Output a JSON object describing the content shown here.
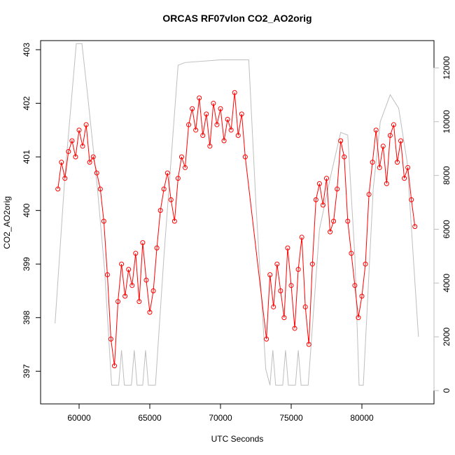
{
  "chart_data": {
    "type": "line",
    "title": "ORCAS RF07vlon CO2_AO2orig",
    "x_label": "UTC Seconds",
    "y_label": "CO2_AO2orig",
    "xlim": [
      57277,
      85099
    ],
    "xticks": [
      60000,
      65000,
      70000,
      75000,
      80000
    ],
    "ylim": [
      396.39,
      403.17
    ],
    "yticks": [
      397,
      398,
      399,
      400,
      401,
      402,
      403
    ],
    "y2lim": [
      -495,
      13015
    ],
    "y2ticks": [
      0,
      2000,
      4000,
      6000,
      8000,
      10000,
      12000
    ],
    "y2_color": "#bebebe",
    "series": [
      {
        "color": "#ff0000",
        "marker": "circle",
        "x": [
          58500,
          58750,
          59000,
          59250,
          59500,
          59750,
          60000,
          60250,
          60500,
          60750,
          61000,
          61250,
          61500,
          61750,
          62000,
          62250,
          62500,
          62750,
          63000,
          63250,
          63500,
          63750,
          64000,
          64250,
          64500,
          64750,
          65000,
          65250,
          65500,
          65750,
          66000,
          66250,
          66500,
          66750,
          67000,
          67250,
          67500,
          67750,
          68000,
          68250,
          68500,
          68750,
          69000,
          69250,
          69500,
          69750,
          70000,
          70250,
          70500,
          70750,
          71000,
          71250,
          71500,
          71750,
          73250,
          73500,
          73750,
          74000,
          74250,
          74500,
          74750,
          75000,
          75250,
          75500,
          75750,
          76000,
          76250,
          76500,
          76750,
          77000,
          77250,
          77500,
          77750,
          78000,
          78250,
          78500,
          78750,
          79000,
          79250,
          79500,
          79750,
          80000,
          80250,
          80500,
          80750,
          81000,
          81250,
          81500,
          81750,
          82000,
          82250,
          82500,
          82750,
          83000,
          83250,
          83500,
          83750
        ],
        "values": [
          400.4,
          400.9,
          400.6,
          401.1,
          401.3,
          401.0,
          401.5,
          401.2,
          401.6,
          400.9,
          401.0,
          400.7,
          400.4,
          399.8,
          398.8,
          397.6,
          397.1,
          398.3,
          399.0,
          398.4,
          398.9,
          398.6,
          399.2,
          398.3,
          399.4,
          398.7,
          398.1,
          398.5,
          399.3,
          400.0,
          400.4,
          400.7,
          400.2,
          399.8,
          400.6,
          401.0,
          400.8,
          401.6,
          401.9,
          401.5,
          402.1,
          401.4,
          401.8,
          401.2,
          402.0,
          401.6,
          401.9,
          401.3,
          401.7,
          401.5,
          402.2,
          401.4,
          401.8,
          401.0,
          397.6,
          398.8,
          398.2,
          399.0,
          398.5,
          398.0,
          399.3,
          398.6,
          397.8,
          398.9,
          399.5,
          398.2,
          397.5,
          399.0,
          400.2,
          400.5,
          400.1,
          400.6,
          399.6,
          399.8,
          400.4,
          401.3,
          401.0,
          399.8,
          399.2,
          398.6,
          398.0,
          398.4,
          399.0,
          400.3,
          400.9,
          401.5,
          400.8,
          401.2,
          400.5,
          401.4,
          401.6,
          400.9,
          401.3,
          400.6,
          400.8,
          400.2,
          399.7
        ]
      },
      {
        "color": "#bebebe",
        "axis": "y2",
        "x": [
          58300,
          59000,
          59800,
          60200,
          60600,
          61300,
          61800,
          62300,
          62800,
          63000,
          63200,
          63700,
          63900,
          64100,
          64500,
          64700,
          64900,
          65400,
          66000,
          67000,
          67500,
          70000,
          72000,
          72500,
          73200,
          73500,
          73700,
          73900,
          74400,
          74600,
          74800,
          75300,
          75500,
          75700,
          76200,
          77000,
          77800,
          78500,
          79000,
          79500,
          79800,
          80100,
          80800,
          81300,
          82000,
          82600,
          83200,
          84000
        ],
        "values": [
          2500,
          8000,
          12900,
          12900,
          11000,
          7500,
          4500,
          200,
          200,
          1500,
          200,
          200,
          1500,
          200,
          200,
          1500,
          200,
          200,
          5000,
          12100,
          12200,
          12300,
          12300,
          7000,
          800,
          200,
          1500,
          200,
          200,
          1500,
          200,
          200,
          1500,
          200,
          200,
          6000,
          8000,
          9600,
          9500,
          5000,
          200,
          200,
          7500,
          10000,
          11000,
          10500,
          8500,
          2000
        ]
      }
    ]
  }
}
